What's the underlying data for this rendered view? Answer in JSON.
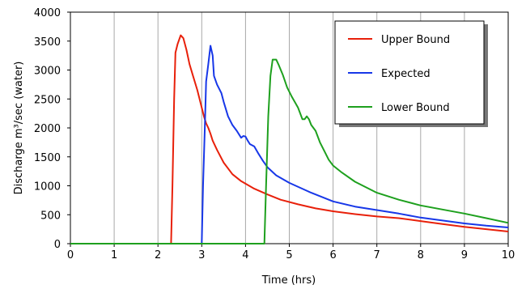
{
  "chart_data": {
    "type": "line",
    "title": "",
    "xlabel": "Time (hrs)",
    "ylabel": "Discharge m³/sec (water)",
    "xlim": [
      0,
      10
    ],
    "ylim": [
      0,
      4000
    ],
    "x_ticks": [
      "0",
      "1",
      "2",
      "3",
      "4",
      "5",
      "6",
      "7",
      "8",
      "9",
      "10"
    ],
    "y_ticks": [
      "0",
      "500",
      "1000",
      "1500",
      "2000",
      "2500",
      "3000",
      "3500",
      "4000"
    ],
    "grid": "vertical",
    "legend_position": "top-right",
    "series": [
      {
        "name": "Upper Bound",
        "color": "#e8200a",
        "points": [
          [
            0,
            0
          ],
          [
            2.3,
            0
          ],
          [
            2.33,
            1000
          ],
          [
            2.37,
            2500
          ],
          [
            2.4,
            3300
          ],
          [
            2.45,
            3450
          ],
          [
            2.52,
            3600
          ],
          [
            2.58,
            3550
          ],
          [
            2.65,
            3350
          ],
          [
            2.72,
            3100
          ],
          [
            2.8,
            2900
          ],
          [
            2.9,
            2650
          ],
          [
            3.0,
            2350
          ],
          [
            3.05,
            2200
          ],
          [
            3.1,
            2080
          ],
          [
            3.15,
            2000
          ],
          [
            3.2,
            1900
          ],
          [
            3.25,
            1780
          ],
          [
            3.35,
            1620
          ],
          [
            3.5,
            1400
          ],
          [
            3.7,
            1200
          ],
          [
            3.9,
            1080
          ],
          [
            4.2,
            950
          ],
          [
            4.5,
            850
          ],
          [
            4.8,
            760
          ],
          [
            5.2,
            680
          ],
          [
            5.6,
            610
          ],
          [
            6.0,
            560
          ],
          [
            6.5,
            510
          ],
          [
            7.0,
            470
          ],
          [
            7.5,
            440
          ],
          [
            8.0,
            390
          ],
          [
            8.5,
            340
          ],
          [
            9.0,
            290
          ],
          [
            9.5,
            250
          ],
          [
            10.0,
            210
          ]
        ]
      },
      {
        "name": "Expected",
        "color": "#1737e8",
        "points": [
          [
            0,
            0
          ],
          [
            3.0,
            0
          ],
          [
            3.03,
            1000
          ],
          [
            3.07,
            2000
          ],
          [
            3.1,
            2800
          ],
          [
            3.15,
            3100
          ],
          [
            3.2,
            3420
          ],
          [
            3.25,
            3250
          ],
          [
            3.28,
            2900
          ],
          [
            3.35,
            2750
          ],
          [
            3.45,
            2600
          ],
          [
            3.5,
            2450
          ],
          [
            3.6,
            2200
          ],
          [
            3.7,
            2050
          ],
          [
            3.8,
            1950
          ],
          [
            3.9,
            1830
          ],
          [
            3.95,
            1860
          ],
          [
            4.0,
            1850
          ],
          [
            4.05,
            1780
          ],
          [
            4.1,
            1720
          ],
          [
            4.2,
            1680
          ],
          [
            4.3,
            1550
          ],
          [
            4.4,
            1430
          ],
          [
            4.5,
            1320
          ],
          [
            4.7,
            1180
          ],
          [
            5.0,
            1050
          ],
          [
            5.5,
            880
          ],
          [
            6.0,
            730
          ],
          [
            6.5,
            640
          ],
          [
            7.0,
            580
          ],
          [
            7.5,
            520
          ],
          [
            8.0,
            450
          ],
          [
            8.5,
            400
          ],
          [
            9.0,
            350
          ],
          [
            9.5,
            310
          ],
          [
            10.0,
            280
          ]
        ]
      },
      {
        "name": "Lower Bound",
        "color": "#1ea01e",
        "points": [
          [
            0,
            0
          ],
          [
            4.43,
            0
          ],
          [
            4.47,
            1000
          ],
          [
            4.52,
            2200
          ],
          [
            4.57,
            2900
          ],
          [
            4.62,
            3180
          ],
          [
            4.7,
            3180
          ],
          [
            4.75,
            3100
          ],
          [
            4.85,
            2920
          ],
          [
            4.95,
            2700
          ],
          [
            5.05,
            2550
          ],
          [
            5.2,
            2350
          ],
          [
            5.3,
            2150
          ],
          [
            5.35,
            2150
          ],
          [
            5.4,
            2200
          ],
          [
            5.45,
            2150
          ],
          [
            5.5,
            2050
          ],
          [
            5.6,
            1950
          ],
          [
            5.7,
            1750
          ],
          [
            5.8,
            1600
          ],
          [
            5.9,
            1450
          ],
          [
            6.0,
            1350
          ],
          [
            6.2,
            1230
          ],
          [
            6.5,
            1070
          ],
          [
            7.0,
            880
          ],
          [
            7.5,
            760
          ],
          [
            8.0,
            660
          ],
          [
            8.5,
            590
          ],
          [
            9.0,
            520
          ],
          [
            9.5,
            440
          ],
          [
            10.0,
            360
          ]
        ]
      }
    ]
  }
}
